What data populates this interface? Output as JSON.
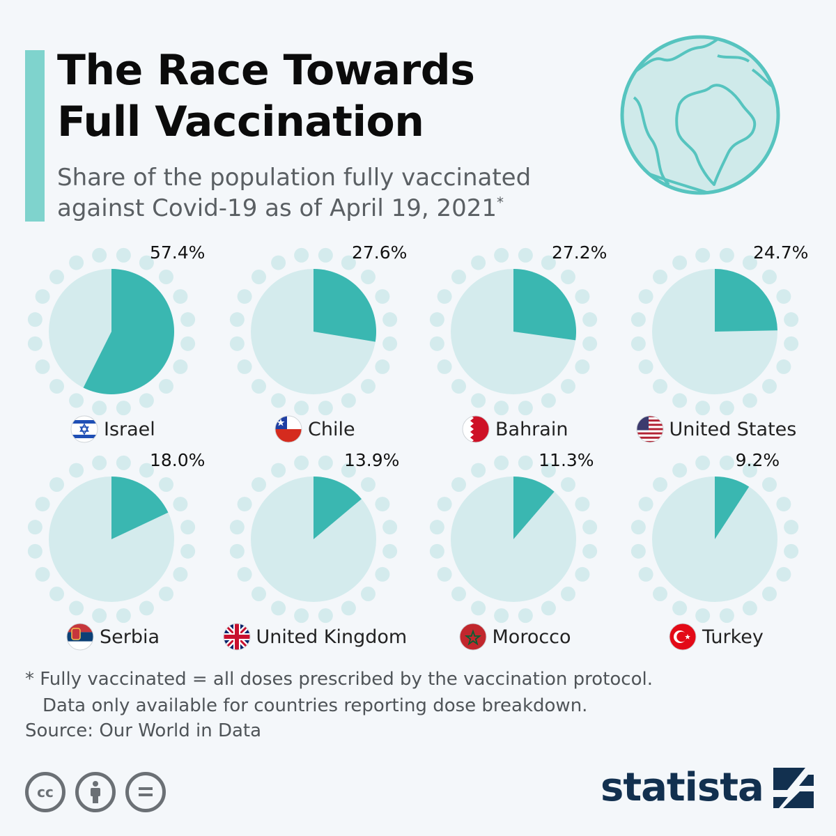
{
  "title_lines": [
    "The Race Towards",
    "Full Vaccination"
  ],
  "subtitle_lines": [
    "Share of the population fully vaccinated",
    "against Covid-19 as of April 19, 2021"
  ],
  "subtitle_mark": "*",
  "colors": {
    "accent": "#7fd3cd",
    "fill": "#3ab7b1",
    "pie_bg": "#d4ebed",
    "dots": "#d4ebed",
    "brand": "#12304f"
  },
  "chart_data": {
    "type": "pie",
    "unit": "%",
    "items": [
      {
        "country": "Israel",
        "value": 57.4,
        "label": "57.4%",
        "flag": "israel"
      },
      {
        "country": "Chile",
        "value": 27.6,
        "label": "27.6%",
        "flag": "chile"
      },
      {
        "country": "Bahrain",
        "value": 27.2,
        "label": "27.2%",
        "flag": "bahrain"
      },
      {
        "country": "United States",
        "value": 24.7,
        "label": "24.7%",
        "flag": "united-states"
      },
      {
        "country": "Serbia",
        "value": 18.0,
        "label": "18.0%",
        "flag": "serbia"
      },
      {
        "country": "United Kingdom",
        "value": 13.9,
        "label": "13.9%",
        "flag": "united-kingdom"
      },
      {
        "country": "Morocco",
        "value": 11.3,
        "label": "11.3%",
        "flag": "morocco"
      },
      {
        "country": "Turkey",
        "value": 9.2,
        "label": "9.2%",
        "flag": "turkey"
      }
    ]
  },
  "footnote_lines": [
    "* Fully vaccinated = all doses prescribed by the vaccination protocol.",
    "Data only available for countries reporting dose breakdown."
  ],
  "source": "Source: Our World in Data",
  "brand": "statista",
  "license_icons": [
    "cc-icon",
    "attribution-icon",
    "no-derivatives-icon"
  ]
}
